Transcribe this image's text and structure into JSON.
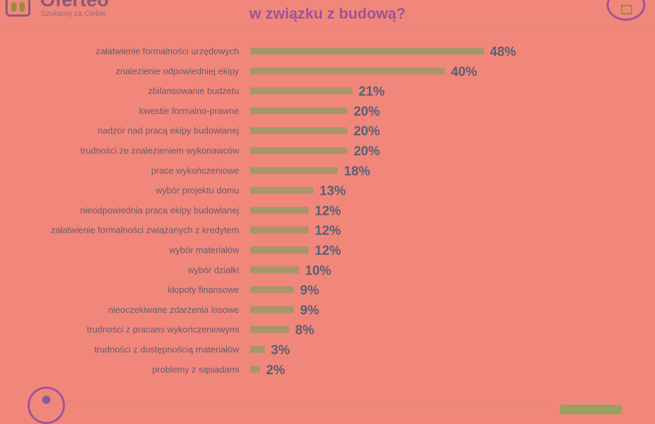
{
  "header": {
    "brand": "Oferteo",
    "tagline": "Szukamy za Ciebie",
    "title": "w związku z budową?"
  },
  "colors": {
    "background": "#f0877a",
    "bar": "#a9956b",
    "label": "#6b5b6e",
    "value": "#5a5f73",
    "title": "#a0529a"
  },
  "chart_data": {
    "type": "bar",
    "orientation": "horizontal",
    "categories": [
      "załatwienie formalności urzędowych",
      "znalezienie odpowiedniej ekipy",
      "zbilansowanie budżetu",
      "kwestie formalno-prawne",
      "nadzór nad pracą ekipy budowlanej",
      "trudności ze znalezieniem wykonawców",
      "prace wykończeniowe",
      "wybór projektu domu",
      "nieodpowiednia praca ekipy budowlanej",
      "załatwienie formalności związanych z kredytem",
      "wybór materiałów",
      "wybór działki",
      "kłopoty finansowe",
      "nieoczekiwane zdarzenia losowe",
      "trudności z pracami wykończeniowymi",
      "trudności z dostępnością materiałów",
      "problemy z sąsiadami"
    ],
    "values": [
      48,
      40,
      21,
      20,
      20,
      20,
      18,
      13,
      12,
      12,
      12,
      10,
      9,
      9,
      8,
      3,
      2
    ],
    "value_labels": [
      "48%",
      "40%",
      "21%",
      "20%",
      "20%",
      "20%",
      "18%",
      "13%",
      "12%",
      "12%",
      "12%",
      "10%",
      "9%",
      "9%",
      "8%",
      "3%",
      "2%"
    ],
    "unit": "%",
    "title": "w związku z budową?",
    "xlabel": "",
    "ylabel": "",
    "xlim": [
      0,
      48
    ],
    "grid": false,
    "legend": "none"
  }
}
